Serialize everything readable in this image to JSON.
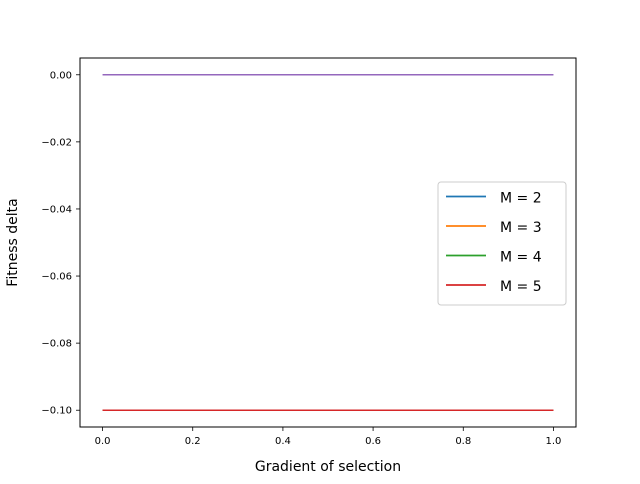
{
  "chart_data": {
    "type": "line",
    "title": "",
    "xlabel": "Gradient of selection",
    "ylabel": "Fitness delta",
    "xlim": [
      -0.05,
      1.05
    ],
    "ylim": [
      -0.105,
      0.005
    ],
    "xticks": [
      0.0,
      0.2,
      0.4,
      0.6,
      0.8,
      1.0
    ],
    "xtick_labels": [
      "0.0",
      "0.2",
      "0.4",
      "0.6",
      "0.8",
      "1.0"
    ],
    "yticks": [
      0.0,
      -0.02,
      -0.04,
      -0.06,
      -0.08,
      -0.1
    ],
    "ytick_labels": [
      "0.00",
      "−0.02",
      "−0.04",
      "−0.06",
      "−0.08",
      "−0.10"
    ],
    "grid": false,
    "legend_position": "center-right",
    "series": [
      {
        "name": "M = 2",
        "color": "#1f77b4",
        "x": [
          0.0,
          1.0
        ],
        "y": [
          -0.1,
          -0.1
        ],
        "in_legend": true
      },
      {
        "name": "M = 3",
        "color": "#ff7f0e",
        "x": [
          0.0,
          1.0
        ],
        "y": [
          -0.1,
          -0.1
        ],
        "in_legend": true
      },
      {
        "name": "M = 4",
        "color": "#2ca02c",
        "x": [
          0.0,
          1.0
        ],
        "y": [
          -0.1,
          -0.1
        ],
        "in_legend": true
      },
      {
        "name": "M = 5",
        "color": "#d62728",
        "x": [
          0.0,
          1.0
        ],
        "y": [
          -0.1,
          -0.1
        ],
        "in_legend": true
      },
      {
        "name": "",
        "color": "#9467bd",
        "x": [
          0.0,
          1.0
        ],
        "y": [
          0.0,
          0.0
        ],
        "in_legend": false
      }
    ]
  }
}
